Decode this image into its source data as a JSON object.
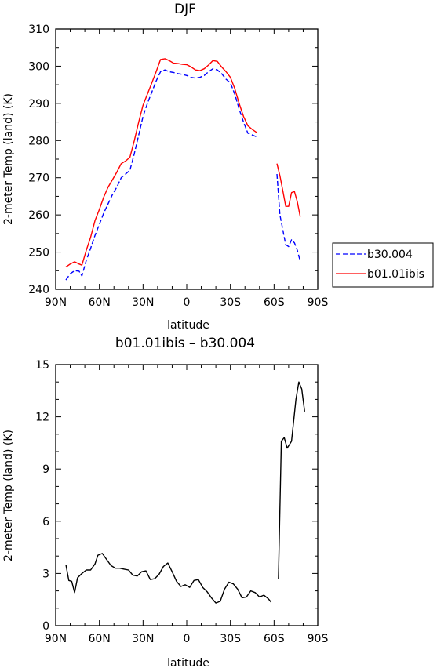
{
  "chart_data": [
    {
      "type": "line",
      "title": "DJF",
      "xlabel": "latitude",
      "ylabel": "2-meter Temp (land) (K)",
      "xlim": [
        90,
        -90
      ],
      "ylim": [
        240,
        310
      ],
      "x_ticks": [
        90,
        60,
        30,
        0,
        -30,
        -60,
        -90
      ],
      "x_tick_labels": [
        "90N",
        "60N",
        "30N",
        "0",
        "30S",
        "60S",
        "90S"
      ],
      "y_ticks": [
        240,
        250,
        260,
        270,
        280,
        290,
        300,
        310
      ],
      "y_tick_labels": [
        "240",
        "250",
        "260",
        "270",
        "280",
        "290",
        "300",
        "310"
      ],
      "legend_position": "outside-right",
      "series": [
        {
          "name": "b30.004",
          "color": "#0000ff",
          "dash": "dashed",
          "points": [
            [
              83,
              242.5
            ],
            [
              80,
              244.2
            ],
            [
              77,
              245.0
            ],
            [
              74,
              244.9
            ],
            [
              72,
              243.6
            ],
            [
              69,
              247.8
            ],
            [
              66,
              251.0
            ],
            [
              63,
              254.5
            ],
            [
              60,
              257.5
            ],
            [
              57,
              260.5
            ],
            [
              54,
              263.0
            ],
            [
              51,
              265.5
            ],
            [
              48,
              267.5
            ],
            [
              45,
              270.0
            ],
            [
              42,
              271.0
            ],
            [
              39,
              272.0
            ],
            [
              36,
              276.5
            ],
            [
              33,
              281.5
            ],
            [
              30,
              286.5
            ],
            [
              27,
              290.0
            ],
            [
              24,
              293.0
            ],
            [
              21,
              296.0
            ],
            [
              18,
              298.5
            ],
            [
              15,
              299.0
            ],
            [
              12,
              298.5
            ],
            [
              9,
              298.3
            ],
            [
              6,
              298.0
            ],
            [
              3,
              297.8
            ],
            [
              0,
              297.5
            ],
            [
              -3,
              297.0
            ],
            [
              -6,
              296.8
            ],
            [
              -9,
              297.0
            ],
            [
              -12,
              297.5
            ],
            [
              -15,
              298.5
            ],
            [
              -18,
              299.3
            ],
            [
              -21,
              299.0
            ],
            [
              -24,
              298.0
            ],
            [
              -27,
              296.5
            ],
            [
              -30,
              295.5
            ],
            [
              -33,
              292.5
            ],
            [
              -36,
              288.5
            ],
            [
              -39,
              285.0
            ],
            [
              -42,
              282.0
            ],
            [
              -45,
              281.5
            ],
            [
              -48,
              281.0
            ],
            null,
            [
              -62,
              271.0
            ],
            [
              -64,
              260.0
            ],
            [
              -66,
              256.0
            ],
            [
              -68,
              252.0
            ],
            [
              -70,
              251.5
            ],
            [
              -72,
              253.3
            ],
            [
              -74,
              252.5
            ],
            [
              -76,
              250.5
            ],
            [
              -78,
              247.5
            ]
          ]
        },
        {
          "name": "b01.01ibis",
          "color": "#ff0000",
          "dash": "solid",
          "points": [
            [
              83,
              246.0
            ],
            [
              80,
              246.8
            ],
            [
              77,
              247.4
            ],
            [
              74,
              246.8
            ],
            [
              72,
              246.5
            ],
            [
              69,
              250.5
            ],
            [
              66,
              254.0
            ],
            [
              63,
              258.5
            ],
            [
              60,
              261.5
            ],
            [
              57,
              264.8
            ],
            [
              54,
              267.5
            ],
            [
              51,
              269.5
            ],
            [
              48,
              271.5
            ],
            [
              45,
              273.8
            ],
            [
              42,
              274.5
            ],
            [
              39,
              275.5
            ],
            [
              36,
              280.0
            ],
            [
              33,
              285.0
            ],
            [
              30,
              289.5
            ],
            [
              27,
              292.5
            ],
            [
              24,
              295.5
            ],
            [
              21,
              298.5
            ],
            [
              18,
              301.8
            ],
            [
              15,
              302.0
            ],
            [
              12,
              301.5
            ],
            [
              9,
              300.8
            ],
            [
              6,
              300.7
            ],
            [
              3,
              300.5
            ],
            [
              0,
              300.4
            ],
            [
              -3,
              299.8
            ],
            [
              -6,
              299.0
            ],
            [
              -9,
              298.8
            ],
            [
              -12,
              299.3
            ],
            [
              -15,
              300.3
            ],
            [
              -18,
              301.5
            ],
            [
              -21,
              301.3
            ],
            [
              -24,
              299.8
            ],
            [
              -27,
              298.5
            ],
            [
              -30,
              297.0
            ],
            [
              -33,
              294.0
            ],
            [
              -36,
              290.0
            ],
            [
              -39,
              286.5
            ],
            [
              -42,
              284.0
            ],
            [
              -45,
              283.0
            ],
            [
              -48,
              282.2
            ],
            null,
            [
              -62,
              273.8
            ],
            [
              -64,
              270.5
            ],
            [
              -66,
              266.5
            ],
            [
              -68,
              262.3
            ],
            [
              -70,
              262.3
            ],
            [
              -72,
              266.0
            ],
            [
              -74,
              266.3
            ],
            [
              -76,
              263.5
            ],
            [
              -78,
              259.5
            ]
          ]
        }
      ]
    },
    {
      "type": "line",
      "title": "b01.01ibis – b30.004",
      "xlabel": "latitude",
      "ylabel": "2-meter Temp (land) (K)",
      "xlim": [
        90,
        -90
      ],
      "ylim": [
        0,
        15
      ],
      "x_ticks": [
        90,
        60,
        30,
        0,
        -30,
        -60,
        -90
      ],
      "x_tick_labels": [
        "90N",
        "60N",
        "30N",
        "0",
        "30S",
        "60S",
        "90S"
      ],
      "y_ticks": [
        0,
        3,
        6,
        9,
        12,
        15
      ],
      "y_tick_labels": [
        "0",
        "3",
        "6",
        "9",
        "12",
        "15"
      ],
      "series": [
        {
          "color": "#000000",
          "dash": "solid",
          "points": [
            [
              83,
              3.5
            ],
            [
              81,
              2.6
            ],
            [
              79,
              2.55
            ],
            [
              77,
              1.9
            ],
            [
              75,
              2.75
            ],
            [
              72,
              3.0
            ],
            [
              69,
              3.2
            ],
            [
              66,
              3.2
            ],
            [
              63,
              3.55
            ],
            [
              61,
              4.05
            ],
            [
              58,
              4.15
            ],
            [
              55,
              3.8
            ],
            [
              52,
              3.45
            ],
            [
              49,
              3.3
            ],
            [
              46,
              3.3
            ],
            [
              43,
              3.25
            ],
            [
              40,
              3.2
            ],
            [
              37,
              2.9
            ],
            [
              34,
              2.85
            ],
            [
              31,
              3.1
            ],
            [
              28,
              3.15
            ],
            [
              25,
              2.65
            ],
            [
              22,
              2.7
            ],
            [
              19,
              2.95
            ],
            [
              16,
              3.4
            ],
            [
              13,
              3.6
            ],
            [
              10,
              3.1
            ],
            [
              7,
              2.55
            ],
            [
              4,
              2.25
            ],
            [
              1,
              2.35
            ],
            [
              -2,
              2.2
            ],
            [
              -5,
              2.6
            ],
            [
              -8,
              2.65
            ],
            [
              -11,
              2.2
            ],
            [
              -14,
              1.95
            ],
            [
              -17,
              1.6
            ],
            [
              -20,
              1.3
            ],
            [
              -23,
              1.4
            ],
            [
              -26,
              2.1
            ],
            [
              -29,
              2.5
            ],
            [
              -32,
              2.4
            ],
            [
              -35,
              2.1
            ],
            [
              -38,
              1.6
            ],
            [
              -41,
              1.65
            ],
            [
              -44,
              2.0
            ],
            [
              -47,
              1.9
            ],
            [
              -50,
              1.65
            ],
            [
              -53,
              1.75
            ],
            [
              -56,
              1.55
            ],
            [
              -58,
              1.35
            ],
            null,
            [
              -63,
              2.7
            ],
            [
              -65,
              10.6
            ],
            [
              -67,
              10.8
            ],
            [
              -69,
              10.2
            ],
            [
              -72,
              10.6
            ],
            [
              -75,
              13.0
            ],
            [
              -77,
              14.0
            ],
            [
              -79,
              13.6
            ],
            [
              -81,
              12.3
            ]
          ]
        }
      ]
    }
  ]
}
